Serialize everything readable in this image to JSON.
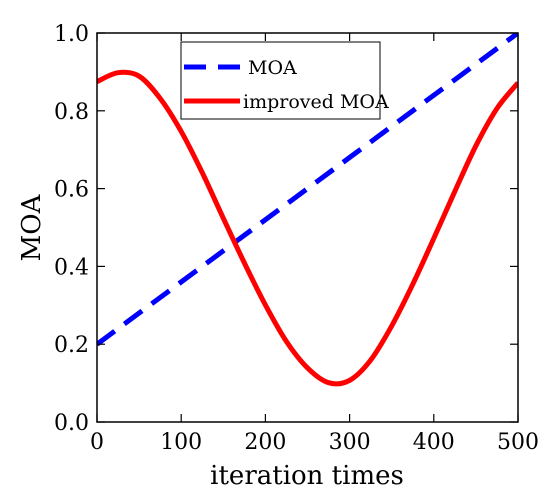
{
  "chart_data": {
    "type": "line",
    "title": "",
    "xlabel": "iteration times",
    "ylabel": "MOA",
    "xlim": [
      0,
      500
    ],
    "ylim": [
      0.0,
      1.0
    ],
    "x_ticks": [
      "0",
      "100",
      "200",
      "300",
      "400",
      "500"
    ],
    "y_ticks": [
      "0.0",
      "0.2",
      "0.4",
      "0.6",
      "0.8",
      "1.0"
    ],
    "grid": false,
    "legend_position": "top-center",
    "series": [
      {
        "name": "MOA",
        "color": "#0000ff",
        "style": "dashed",
        "x": [
          0,
          500
        ],
        "y": [
          0.2,
          1.0
        ]
      },
      {
        "name": "improved MOA",
        "color": "#ff0000",
        "style": "solid",
        "x": [
          0,
          25,
          50,
          75,
          100,
          125,
          150,
          175,
          200,
          225,
          250,
          275,
          300,
          325,
          350,
          375,
          400,
          425,
          450,
          475,
          500
        ],
        "y": [
          0.875,
          0.898,
          0.889,
          0.832,
          0.747,
          0.641,
          0.524,
          0.409,
          0.301,
          0.207,
          0.139,
          0.101,
          0.107,
          0.159,
          0.247,
          0.354,
          0.472,
          0.593,
          0.71,
          0.806,
          0.872
        ]
      }
    ]
  }
}
